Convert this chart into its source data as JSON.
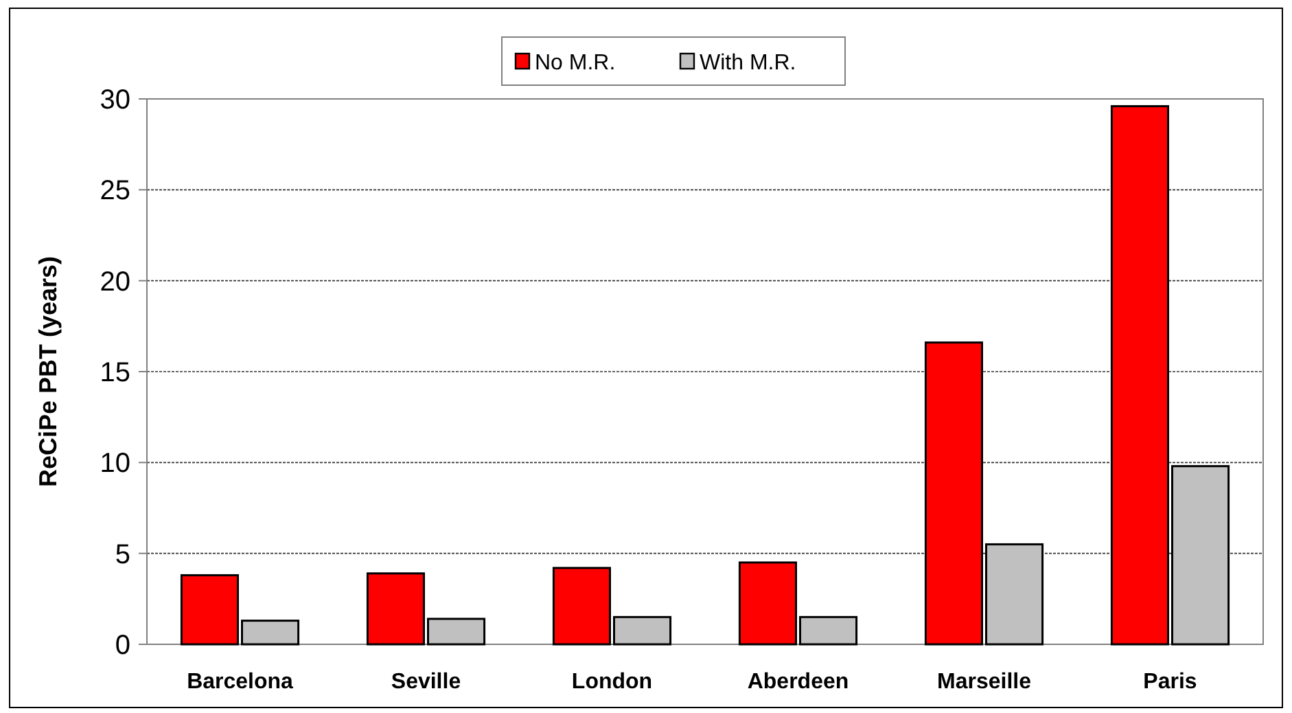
{
  "chart_data": {
    "type": "bar",
    "ylabel": "ReCiPe PBT (years)",
    "categories": [
      "Barcelona",
      "Seville",
      "London",
      "Aberdeen",
      "Marseille",
      "Paris"
    ],
    "series": [
      {
        "name": "No M.R.",
        "color": "#ff0000",
        "values": [
          3.8,
          3.9,
          4.2,
          4.5,
          16.6,
          29.6
        ]
      },
      {
        "name": "With M.R.",
        "color": "#c0c0c0",
        "values": [
          1.3,
          1.4,
          1.5,
          1.5,
          5.5,
          9.8
        ]
      }
    ],
    "ylim": [
      0,
      30
    ],
    "yticks": [
      0,
      5,
      10,
      15,
      20,
      25,
      30
    ],
    "grid": "y",
    "legend": "top"
  }
}
